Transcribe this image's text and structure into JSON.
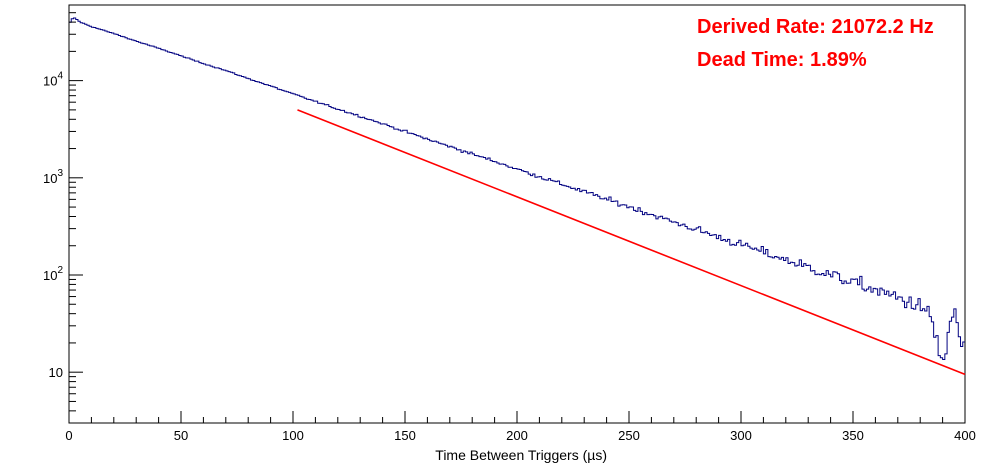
{
  "chart_data": {
    "type": "line",
    "title": "",
    "xlabel": "Time Between Triggers (µs)",
    "ylabel": "",
    "xlim": [
      0,
      400
    ],
    "ylim": [
      3,
      60000
    ],
    "ylog": true,
    "grid": false,
    "x_ticks": [
      "0",
      "50",
      "100",
      "150",
      "200",
      "250",
      "300",
      "350",
      "400"
    ],
    "y_ticks": [
      {
        "value": 10,
        "base": "10",
        "exp": ""
      },
      {
        "value": 100,
        "base": "10",
        "exp": "2"
      },
      {
        "value": 1000,
        "base": "10",
        "exp": "3"
      },
      {
        "value": 10000,
        "base": "10",
        "exp": "4"
      }
    ],
    "series": [
      {
        "name": "",
        "kind": "histogram",
        "color": "#000080",
        "bin_width": 1,
        "x": [
          0,
          2,
          5,
          10,
          20,
          30,
          40,
          50,
          60,
          70,
          80,
          90,
          100,
          110,
          120,
          130,
          140,
          150,
          160,
          170,
          180,
          190,
          200,
          210,
          220,
          230,
          240,
          250,
          260,
          270,
          280,
          290,
          300,
          310,
          320,
          330,
          340,
          350,
          360,
          370,
          380,
          385,
          390,
          395,
          399
        ],
        "y": [
          38000,
          45000,
          40000,
          36000,
          30500,
          25500,
          21500,
          18000,
          15000,
          12700,
          10500,
          8800,
          7300,
          6100,
          5100,
          4300,
          3600,
          3000,
          2500,
          2100,
          1760,
          1480,
          1230,
          1030,
          860,
          720,
          600,
          505,
          420,
          350,
          295,
          245,
          205,
          172,
          143,
          120,
          100,
          84,
          70,
          58,
          48,
          35,
          12,
          42,
          18
        ]
      },
      {
        "name": "",
        "kind": "fit",
        "color": "#ff0000",
        "x": [
          102,
          400
        ],
        "y": [
          5000,
          9.5
        ]
      }
    ],
    "annotations": [
      {
        "text": "Derived Rate: 21072.2 Hz",
        "color": "#ff0000"
      },
      {
        "text": "Dead Time: 1.89%",
        "color": "#ff0000"
      }
    ]
  }
}
